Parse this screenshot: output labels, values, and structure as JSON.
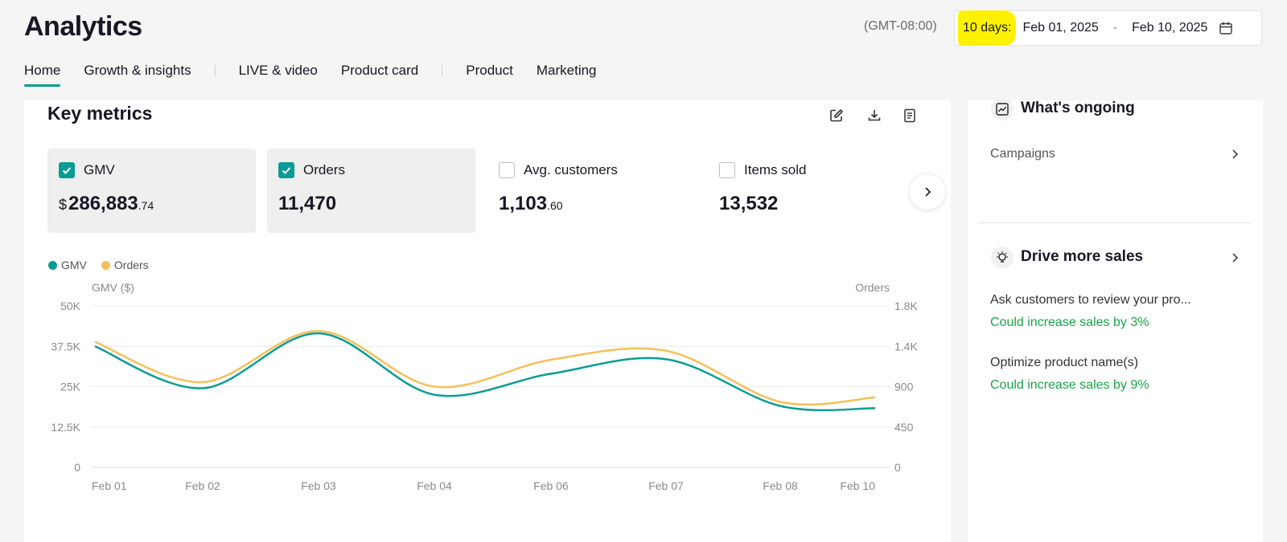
{
  "header": {
    "title": "Analytics",
    "timezone": "(GMT-08:00)",
    "date_range": {
      "preset": "10 days:",
      "start": "Feb 01, 2025",
      "separator": "-",
      "end": "Feb 10, 2025"
    }
  },
  "nav": {
    "tabs": [
      "Home",
      "Growth & insights",
      "LIVE & video",
      "Product card",
      "Product",
      "Marketing"
    ],
    "active": "Home"
  },
  "key_metrics": {
    "title": "Key metrics",
    "cards": [
      {
        "label": "GMV",
        "currency": "$",
        "value": "286,883",
        "decimal": ".74",
        "checked": true
      },
      {
        "label": "Orders",
        "currency": "",
        "value": "11,470",
        "decimal": "",
        "checked": true
      },
      {
        "label": "Avg. customers",
        "currency": "",
        "value": "1,103",
        "decimal": ".60",
        "checked": false
      },
      {
        "label": "Items sold",
        "currency": "",
        "value": "13,532",
        "decimal": "",
        "checked": false
      }
    ]
  },
  "legend": {
    "gmv": "GMV",
    "orders": "Orders"
  },
  "colors": {
    "gmv": "#0a9c94",
    "orders": "#f5c05b",
    "accent": "#0a9c94",
    "highlight": "#fff200",
    "positive": "#1aa34a"
  },
  "chart_data": {
    "type": "line",
    "x": [
      "Feb 01",
      "Feb 02",
      "Feb 03",
      "Feb 04",
      "Feb 06",
      "Feb 07",
      "Feb 08",
      "Feb 10"
    ],
    "series": [
      {
        "name": "GMV",
        "axis": "left",
        "values": [
          37500,
          24500,
          41500,
          22500,
          29000,
          33500,
          19000,
          18300
        ]
      },
      {
        "name": "Orders",
        "axis": "right",
        "values": [
          1400,
          950,
          1520,
          900,
          1200,
          1300,
          730,
          780
        ]
      }
    ],
    "ylabel": "GMV ($)",
    "ylabel_right": "Orders",
    "yticks": [
      "0",
      "12.5K",
      "25K",
      "37.5K",
      "50K"
    ],
    "yticks_right": [
      "0",
      "450",
      "900",
      "1.4K",
      "1.8K"
    ],
    "ylim": [
      0,
      50000
    ],
    "ylim_right": [
      0,
      1800
    ],
    "grid": true,
    "legend": "top-left"
  },
  "sidebar": {
    "ongoing": {
      "title": "What's ongoing",
      "link": "Campaigns"
    },
    "drive": {
      "title": "Drive more sales",
      "tips": [
        {
          "text": "Ask customers to review your pro...",
          "impact": "Could increase sales by 3%"
        },
        {
          "text": "Optimize product name(s)",
          "impact": "Could increase sales by 9%"
        }
      ]
    }
  }
}
